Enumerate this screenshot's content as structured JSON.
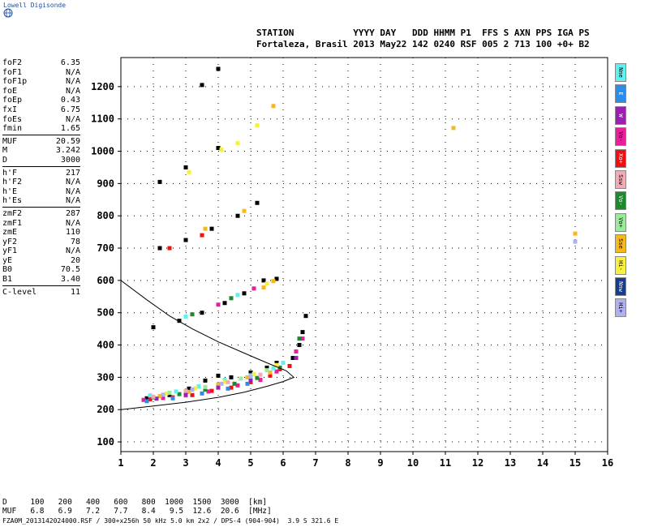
{
  "logo": {
    "text": "Lowell Digisonde"
  },
  "header": {
    "line1": "STATION           YYYY DAY   DDD HHMM P1  FFS S AXN PPS IGA PS",
    "line2": "Fortaleza, Brasil 2013 May22 142 0240 RSF 005 2 713 100 +0+ B2"
  },
  "params": {
    "group1": [
      {
        "label": "foF2",
        "value": "6.35"
      },
      {
        "label": "foF1",
        "value": "N/A"
      },
      {
        "label": "foF1p",
        "value": "N/A"
      },
      {
        "label": "foE",
        "value": "N/A"
      },
      {
        "label": "foEp",
        "value": "0.43"
      },
      {
        "label": "fxI",
        "value": "6.75"
      },
      {
        "label": "foEs",
        "value": "N/A"
      },
      {
        "label": "fmin",
        "value": "1.65"
      }
    ],
    "group2": [
      {
        "label": "MUF",
        "value": "20.59"
      },
      {
        "label": "M",
        "value": "3.242"
      },
      {
        "label": "D",
        "value": "3000"
      }
    ],
    "group3": [
      {
        "label": "h'F",
        "value": "217"
      },
      {
        "label": "h'F2",
        "value": "N/A"
      },
      {
        "label": "h'E",
        "value": "N/A"
      },
      {
        "label": "h'Es",
        "value": "N/A"
      }
    ],
    "group4": [
      {
        "label": "zmF2",
        "value": "287"
      },
      {
        "label": "zmF1",
        "value": "N/A"
      },
      {
        "label": "zmE",
        "value": "110"
      },
      {
        "label": "yF2",
        "value": "78"
      },
      {
        "label": "yF1",
        "value": "N/A"
      },
      {
        "label": "yE",
        "value": "20"
      },
      {
        "label": "B0",
        "value": "70.5"
      },
      {
        "label": "B1",
        "value": "3.40"
      }
    ],
    "group5": [
      {
        "label": "C-level",
        "value": "11"
      }
    ]
  },
  "legend": [
    {
      "label": "Nne",
      "color": "#5ff0f0"
    },
    {
      "label": "E",
      "color": "#2a8ee8"
    },
    {
      "label": "W",
      "color": "#9b1fb0"
    },
    {
      "label": "Vo-",
      "color": "#e81e9a"
    },
    {
      "label": "Xo+",
      "color": "#ee1111"
    },
    {
      "label": "Ssw",
      "color": "#f2aab4"
    },
    {
      "label": "Vo-",
      "color": "#1a8a2a"
    },
    {
      "label": "Vo+",
      "color": "#9ce89c"
    },
    {
      "label": "Sse",
      "color": "#f4b820"
    },
    {
      "label": "Hi-",
      "color": "#f8f040"
    },
    {
      "label": "Nnw",
      "color": "#183c8c"
    },
    {
      "label": "Hi+",
      "color": "#b0b0f0"
    }
  ],
  "bottom": {
    "line1": "D     100   200   400   600   800  1000  1500  3000  [km]",
    "line2": "MUF   6.8   6.9   7.2   7.7   8.4   9.5  12.6  20.6  [MHz]",
    "line3": "FZA0M_2013142024000.RSF / 300+x256h 50 kHz 5.0 km 2x2 / DPS-4 (904-904)  3.9 S 321.6 E"
  },
  "chart_data": {
    "type": "scatter",
    "xlim": [
      1,
      16
    ],
    "ylim": [
      70,
      1290
    ],
    "x_ticks": [
      1,
      2,
      3,
      4,
      5,
      6,
      7,
      8,
      9,
      10,
      11,
      12,
      13,
      14,
      15,
      16
    ],
    "y_ticks": [
      100,
      200,
      300,
      400,
      500,
      600,
      700,
      800,
      900,
      1000,
      1100,
      1200
    ],
    "grid": "dotted",
    "series": [
      {
        "color": "#000000",
        "points": [
          [
            1.8,
            235
          ],
          [
            2.5,
            245
          ],
          [
            3.1,
            265
          ],
          [
            3.6,
            290
          ],
          [
            4.0,
            305
          ],
          [
            4.4,
            300
          ],
          [
            5.0,
            315
          ],
          [
            5.5,
            330
          ],
          [
            5.8,
            345
          ],
          [
            6.3,
            360
          ],
          [
            6.5,
            400
          ],
          [
            6.6,
            440
          ],
          [
            6.7,
            490
          ],
          [
            2.0,
            455
          ],
          [
            2.8,
            475
          ],
          [
            3.5,
            500
          ],
          [
            4.2,
            530
          ],
          [
            4.8,
            560
          ],
          [
            5.4,
            600
          ],
          [
            5.8,
            605
          ],
          [
            2.2,
            700
          ],
          [
            3.0,
            725
          ],
          [
            3.8,
            760
          ],
          [
            4.6,
            800
          ],
          [
            5.2,
            840
          ],
          [
            2.2,
            905
          ],
          [
            3.0,
            950
          ],
          [
            4.0,
            1010
          ],
          [
            4.0,
            1255
          ],
          [
            3.5,
            1205
          ]
        ]
      },
      {
        "color": "#ee1111",
        "points": [
          [
            1.9,
            232
          ],
          [
            2.6,
            238
          ],
          [
            3.2,
            245
          ],
          [
            3.8,
            258
          ],
          [
            4.4,
            268
          ],
          [
            5.0,
            285
          ],
          [
            5.6,
            305
          ],
          [
            5.9,
            325
          ],
          [
            6.2,
            335
          ],
          [
            2.5,
            700
          ],
          [
            3.5,
            740
          ]
        ]
      },
      {
        "color": "#e81e9a",
        "points": [
          [
            1.7,
            230
          ],
          [
            2.3,
            236
          ],
          [
            3.0,
            244
          ],
          [
            3.7,
            256
          ],
          [
            4.6,
            275
          ],
          [
            5.3,
            292
          ],
          [
            5.8,
            318
          ],
          [
            6.4,
            380
          ],
          [
            6.6,
            420
          ],
          [
            4.0,
            525
          ],
          [
            5.1,
            575
          ]
        ]
      },
      {
        "color": "#1a8a2a",
        "points": [
          [
            2.0,
            238
          ],
          [
            2.8,
            248
          ],
          [
            3.6,
            262
          ],
          [
            4.5,
            280
          ],
          [
            5.2,
            298
          ],
          [
            5.9,
            330
          ],
          [
            6.5,
            420
          ],
          [
            3.2,
            495
          ],
          [
            4.4,
            545
          ]
        ]
      },
      {
        "color": "#5ff0f0",
        "points": [
          [
            1.9,
            244
          ],
          [
            2.7,
            256
          ],
          [
            3.4,
            272
          ],
          [
            4.2,
            292
          ],
          [
            5.0,
            306
          ],
          [
            5.7,
            328
          ],
          [
            6.0,
            345
          ],
          [
            3.0,
            488
          ],
          [
            4.6,
            555
          ]
        ]
      },
      {
        "color": "#f4b820",
        "points": [
          [
            2.2,
            242
          ],
          [
            3.1,
            255
          ],
          [
            4.0,
            278
          ],
          [
            4.9,
            300
          ],
          [
            5.6,
            315
          ],
          [
            5.4,
            578
          ],
          [
            5.7,
            598
          ],
          [
            3.6,
            760
          ],
          [
            4.8,
            815
          ],
          [
            5.7,
            1140
          ],
          [
            11.25,
            1072
          ],
          [
            15.0,
            745
          ]
        ]
      },
      {
        "color": "#f8f040",
        "points": [
          [
            2.4,
            250
          ],
          [
            3.3,
            266
          ],
          [
            4.2,
            286
          ],
          [
            5.1,
            310
          ],
          [
            5.8,
            338
          ],
          [
            5.5,
            590
          ],
          [
            3.1,
            935
          ],
          [
            4.1,
            1005
          ],
          [
            4.6,
            1025
          ],
          [
            5.2,
            1080
          ]
        ]
      },
      {
        "color": "#2a8ee8",
        "points": [
          [
            1.8,
            226
          ],
          [
            2.6,
            235
          ],
          [
            3.5,
            250
          ],
          [
            4.3,
            265
          ],
          [
            4.9,
            280
          ]
        ]
      },
      {
        "color": "#9b1fb0",
        "points": [
          [
            2.1,
            234
          ],
          [
            3.0,
            248
          ],
          [
            4.0,
            268
          ],
          [
            5.0,
            292
          ],
          [
            6.4,
            360
          ]
        ]
      },
      {
        "color": "#b0b0f0",
        "points": [
          [
            2.3,
            246
          ],
          [
            3.2,
            262
          ],
          [
            4.1,
            280
          ],
          [
            5.0,
            302
          ],
          [
            15.0,
            720
          ]
        ]
      },
      {
        "color": "#9ce89c",
        "points": [
          [
            2.5,
            252
          ],
          [
            3.6,
            270
          ],
          [
            4.7,
            296
          ],
          [
            5.5,
            322
          ]
        ]
      },
      {
        "color": "#f2aab4",
        "points": [
          [
            2.0,
            240
          ],
          [
            3.0,
            258
          ],
          [
            4.3,
            285
          ],
          [
            5.3,
            308
          ]
        ]
      }
    ],
    "profile": [
      [
        1.0,
        200
      ],
      [
        2.0,
        211
      ],
      [
        3.0,
        223
      ],
      [
        4.0,
        238
      ],
      [
        4.8,
        254
      ],
      [
        5.5,
        272
      ],
      [
        6.0,
        287
      ],
      [
        6.33,
        300
      ],
      [
        6.1,
        320
      ],
      [
        5.5,
        345
      ],
      [
        4.8,
        375
      ],
      [
        4.0,
        410
      ],
      [
        3.2,
        450
      ],
      [
        2.5,
        490
      ],
      [
        1.8,
        540
      ],
      [
        1.0,
        600
      ]
    ]
  }
}
